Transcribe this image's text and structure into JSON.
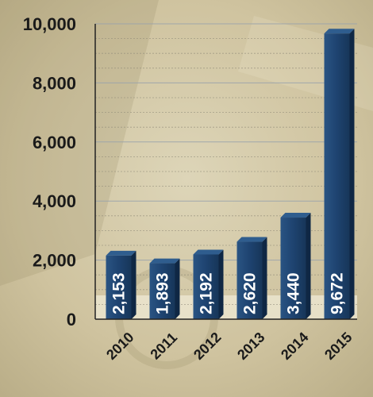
{
  "chart_data": {
    "type": "bar",
    "title": "",
    "xlabel": "",
    "ylabel": "",
    "categories": [
      "2010",
      "2011",
      "2012",
      "2013",
      "2014",
      "2015"
    ],
    "values": [
      2153,
      1893,
      2192,
      2620,
      3440,
      9672
    ],
    "value_labels": [
      "2,153",
      "1,893",
      "2,192",
      "2,620",
      "3,440",
      "9,672"
    ],
    "ylim": [
      0,
      10000
    ],
    "y_ticks": [
      0,
      2000,
      4000,
      6000,
      8000,
      10000
    ],
    "y_tick_labels": [
      "0",
      "2,000",
      "4,000",
      "6,000",
      "8,000",
      "10,000"
    ],
    "grid": true,
    "legend": "none",
    "colors": {
      "bar_front": "#1d3f66",
      "bar_top": "#2f5d8e",
      "bar_side": "#0f2744",
      "value_label": "#ffffff",
      "axis_text": "#1a1a1a",
      "background": "#d9cfb0"
    }
  }
}
